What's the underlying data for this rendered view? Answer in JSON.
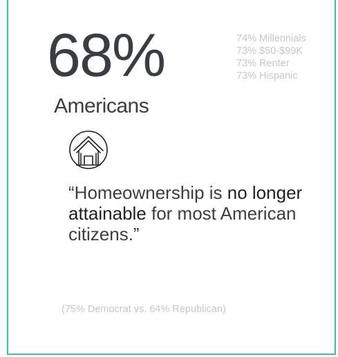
{
  "stat": {
    "value": "68%",
    "label": "Americans"
  },
  "breakdown": [
    "74% Millennials",
    "73% $50-$99K",
    "73% Renter",
    "73% Hispanic"
  ],
  "icon": "house-icon",
  "quote": {
    "open_mark": "“",
    "part1": "Homeownership is ",
    "emph1": "no longer attainable",
    "part2": " for most American citizens.",
    "close_mark": "”"
  },
  "footnote": "(75% Democrat vs. 64% Republican)",
  "colors": {
    "border": "#2ecc9a",
    "text_dark": "#3a3d44",
    "text_light": "#c4c7cc"
  }
}
